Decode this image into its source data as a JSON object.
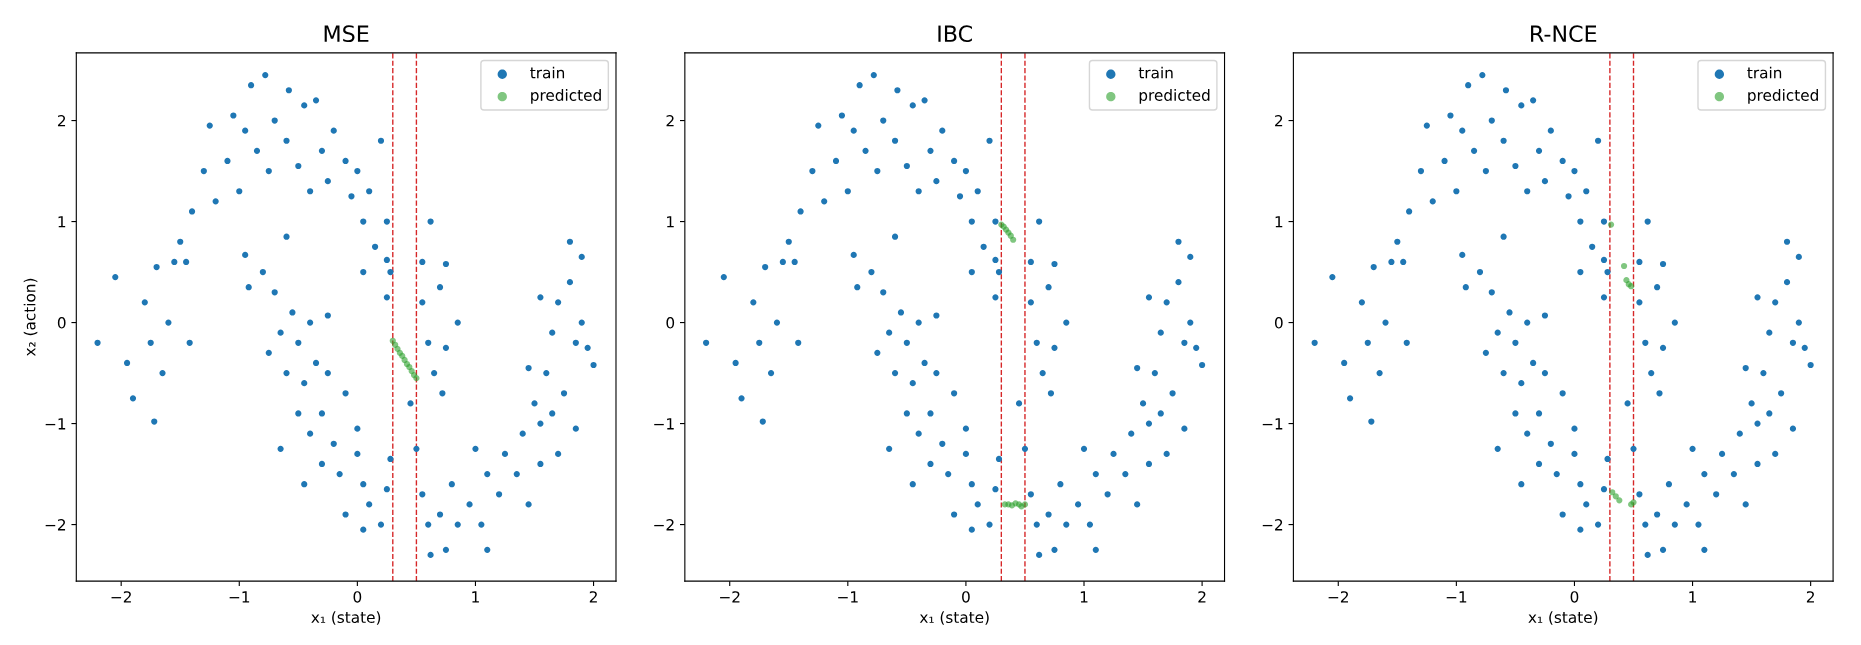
{
  "chart_data": [
    {
      "type": "scatter",
      "title": "MSE",
      "xlabel": "x₁ (state)",
      "ylabel": "x₂ (action)",
      "xlim": [
        -2.38,
        2.19
      ],
      "ylim": [
        -2.56,
        2.67
      ],
      "xticks": [
        -2,
        -1,
        0,
        1,
        2
      ],
      "yticks": [
        -2,
        -1,
        0,
        1,
        2
      ],
      "grid": false,
      "legend": "top right",
      "marker": "circle",
      "ref_lines": [
        {
          "axis": "x",
          "value": 0.3,
          "color": "#d62728",
          "line_style": "dashed"
        },
        {
          "axis": "x",
          "value": 0.5,
          "color": "#d62728",
          "line_style": "dashed"
        }
      ],
      "series": [
        {
          "name": "train",
          "color": "#1f77b4",
          "x": [
            -2.2,
            -2.05,
            -1.95,
            -1.9,
            -1.8,
            -1.75,
            -1.72,
            -1.7,
            -1.65,
            -1.6,
            -1.55,
            -1.5,
            -1.45,
            -1.42,
            -1.4,
            -1.3,
            -1.25,
            -1.2,
            -1.1,
            -1.05,
            -1.0,
            -0.95,
            -0.9,
            -0.85,
            -0.78,
            -0.75,
            -0.7,
            -0.6,
            -0.58,
            -0.5,
            -0.45,
            -0.4,
            -0.35,
            -0.3,
            -0.25,
            -0.2,
            -0.1,
            -0.05,
            0.0,
            0.05,
            0.1,
            0.15,
            0.2,
            0.25,
            0.28,
            0.25,
            0.62,
            0.55,
            0.75,
            0.7,
            0.55,
            0.6,
            0.75,
            0.85,
            0.65,
            0.72,
            0.05,
            0.25,
            -0.95,
            -0.92,
            -0.8,
            -0.7,
            -0.6,
            -0.55,
            -0.65,
            -0.75,
            -0.5,
            -0.4,
            -0.6,
            -0.45,
            -0.25,
            -0.35,
            -0.25,
            -0.65,
            -0.5,
            -0.4,
            -0.3,
            -0.2,
            -0.1,
            -0.45,
            -0.3,
            -0.15,
            0.0,
            0.05,
            -0.1,
            0.1,
            0.2,
            0.05,
            0.28,
            0.25,
            0.5,
            0.55,
            0.6,
            0.62,
            0.7,
            0.75,
            0.8,
            0.85,
            0.95,
            1.0,
            1.05,
            1.1,
            1.1,
            1.2,
            1.25,
            1.35,
            1.4,
            1.45,
            1.5,
            1.55,
            1.55,
            1.6,
            1.65,
            1.7,
            1.7,
            1.75,
            1.8,
            1.8,
            1.85,
            1.85,
            1.9,
            1.9,
            1.95,
            2.0,
            1.55,
            1.65,
            1.45,
            0.0,
            0.45
          ],
          "values": [
            -0.2,
            0.45,
            -0.4,
            -0.75,
            0.2,
            -0.2,
            -0.98,
            0.55,
            -0.5,
            0.0,
            0.6,
            0.8,
            0.6,
            -0.2,
            1.1,
            1.5,
            1.95,
            1.2,
            1.6,
            2.05,
            1.3,
            1.9,
            2.35,
            1.7,
            2.45,
            1.5,
            2.0,
            1.8,
            2.3,
            1.55,
            2.15,
            1.3,
            2.2,
            1.7,
            1.4,
            1.9,
            1.6,
            1.25,
            1.5,
            1.0,
            1.3,
            0.75,
            1.8,
            1.0,
            0.5,
            0.25,
            1.0,
            0.6,
            0.58,
            0.35,
            0.2,
            -0.2,
            -0.25,
            0.0,
            -0.5,
            -0.7,
            0.5,
            0.62,
            0.67,
            0.35,
            0.5,
            0.3,
            0.85,
            0.1,
            -0.1,
            -0.3,
            -0.2,
            0.0,
            -0.5,
            -0.6,
            0.07,
            -0.4,
            -0.5,
            -1.25,
            -0.9,
            -1.1,
            -0.9,
            -1.2,
            -0.7,
            -1.6,
            -1.4,
            -1.5,
            -1.3,
            -1.6,
            -1.9,
            -1.8,
            -2.0,
            -2.05,
            -1.35,
            -1.65,
            -1.25,
            -1.7,
            -2.0,
            -2.3,
            -1.9,
            -2.25,
            -1.6,
            -2.0,
            -1.8,
            -1.25,
            -2.0,
            -2.25,
            -1.5,
            -1.7,
            -1.3,
            -1.5,
            -1.1,
            -1.8,
            -0.8,
            -1.4,
            -1.0,
            -0.5,
            -0.1,
            0.2,
            -1.3,
            -0.7,
            0.4,
            0.8,
            -0.2,
            -1.05,
            0.65,
            0.0,
            -0.25,
            -0.42,
            0.25,
            -0.9,
            -0.45,
            -1.05,
            -0.8
          ]
        },
        {
          "name": "predicted",
          "color": "#2ca02c",
          "x": [
            0.3,
            0.32,
            0.34,
            0.36,
            0.38,
            0.4,
            0.42,
            0.44,
            0.46,
            0.48,
            0.5
          ],
          "values": [
            -0.18,
            -0.22,
            -0.26,
            -0.3,
            -0.33,
            -0.37,
            -0.41,
            -0.44,
            -0.48,
            -0.52,
            -0.55
          ]
        }
      ]
    },
    {
      "type": "scatter",
      "title": "IBC",
      "xlabel": "x₁ (state)",
      "xlim": [
        -2.38,
        2.19
      ],
      "ylim": [
        -2.56,
        2.67
      ],
      "xticks": [
        -2,
        -1,
        0,
        1,
        2
      ],
      "yticks": [
        -2,
        -1,
        0,
        1,
        2
      ],
      "grid": false,
      "legend": "top right",
      "marker": "circle",
      "ref_lines": [
        {
          "axis": "x",
          "value": 0.3,
          "color": "#d62728",
          "line_style": "dashed"
        },
        {
          "axis": "x",
          "value": 0.5,
          "color": "#d62728",
          "line_style": "dashed"
        }
      ],
      "series": [
        {
          "name": "train",
          "color": "#1f77b4",
          "x": [
            -2.2,
            -2.05,
            -1.95,
            -1.9,
            -1.8,
            -1.75,
            -1.72,
            -1.7,
            -1.65,
            -1.6,
            -1.55,
            -1.5,
            -1.45,
            -1.42,
            -1.4,
            -1.3,
            -1.25,
            -1.2,
            -1.1,
            -1.05,
            -1.0,
            -0.95,
            -0.9,
            -0.85,
            -0.78,
            -0.75,
            -0.7,
            -0.6,
            -0.58,
            -0.5,
            -0.45,
            -0.4,
            -0.35,
            -0.3,
            -0.25,
            -0.2,
            -0.1,
            -0.05,
            0.0,
            0.05,
            0.1,
            0.15,
            0.2,
            0.25,
            0.28,
            0.25,
            0.62,
            0.55,
            0.75,
            0.7,
            0.55,
            0.6,
            0.75,
            0.85,
            0.65,
            0.72,
            0.05,
            0.25,
            -0.95,
            -0.92,
            -0.8,
            -0.7,
            -0.6,
            -0.55,
            -0.65,
            -0.75,
            -0.5,
            -0.4,
            -0.6,
            -0.45,
            -0.25,
            -0.35,
            -0.25,
            -0.65,
            -0.5,
            -0.4,
            -0.3,
            -0.2,
            -0.1,
            -0.45,
            -0.3,
            -0.15,
            0.0,
            0.05,
            -0.1,
            0.1,
            0.2,
            0.05,
            0.28,
            0.25,
            0.5,
            0.55,
            0.6,
            0.62,
            0.7,
            0.75,
            0.8,
            0.85,
            0.95,
            1.0,
            1.05,
            1.1,
            1.1,
            1.2,
            1.25,
            1.35,
            1.4,
            1.45,
            1.5,
            1.55,
            1.55,
            1.6,
            1.65,
            1.7,
            1.7,
            1.75,
            1.8,
            1.8,
            1.85,
            1.85,
            1.9,
            1.9,
            1.95,
            2.0,
            1.55,
            1.65,
            1.45,
            0.0,
            0.45
          ],
          "values": [
            -0.2,
            0.45,
            -0.4,
            -0.75,
            0.2,
            -0.2,
            -0.98,
            0.55,
            -0.5,
            0.0,
            0.6,
            0.8,
            0.6,
            -0.2,
            1.1,
            1.5,
            1.95,
            1.2,
            1.6,
            2.05,
            1.3,
            1.9,
            2.35,
            1.7,
            2.45,
            1.5,
            2.0,
            1.8,
            2.3,
            1.55,
            2.15,
            1.3,
            2.2,
            1.7,
            1.4,
            1.9,
            1.6,
            1.25,
            1.5,
            1.0,
            1.3,
            0.75,
            1.8,
            1.0,
            0.5,
            0.25,
            1.0,
            0.6,
            0.58,
            0.35,
            0.2,
            -0.2,
            -0.25,
            0.0,
            -0.5,
            -0.7,
            0.5,
            0.62,
            0.67,
            0.35,
            0.5,
            0.3,
            0.85,
            0.1,
            -0.1,
            -0.3,
            -0.2,
            0.0,
            -0.5,
            -0.6,
            0.07,
            -0.4,
            -0.5,
            -1.25,
            -0.9,
            -1.1,
            -0.9,
            -1.2,
            -0.7,
            -1.6,
            -1.4,
            -1.5,
            -1.3,
            -1.6,
            -1.9,
            -1.8,
            -2.0,
            -2.05,
            -1.35,
            -1.65,
            -1.25,
            -1.7,
            -2.0,
            -2.3,
            -1.9,
            -2.25,
            -1.6,
            -2.0,
            -1.8,
            -1.25,
            -2.0,
            -2.25,
            -1.5,
            -1.7,
            -1.3,
            -1.5,
            -1.1,
            -1.8,
            -0.8,
            -1.4,
            -1.0,
            -0.5,
            -0.1,
            0.2,
            -1.3,
            -0.7,
            0.4,
            0.8,
            -0.2,
            -1.05,
            0.65,
            0.0,
            -0.25,
            -0.42,
            0.25,
            -0.9,
            -0.45,
            -1.05,
            -0.8
          ]
        },
        {
          "name": "predicted",
          "color": "#2ca02c",
          "x": [
            0.3,
            0.32,
            0.34,
            0.36,
            0.38,
            0.4,
            0.33,
            0.36,
            0.39,
            0.42,
            0.45,
            0.47,
            0.5
          ],
          "values": [
            0.97,
            0.95,
            0.92,
            0.89,
            0.86,
            0.82,
            -1.8,
            -1.8,
            -1.81,
            -1.79,
            -1.8,
            -1.82,
            -1.8
          ]
        }
      ]
    },
    {
      "type": "scatter",
      "title": "R-NCE",
      "xlabel": "x₁ (state)",
      "xlim": [
        -2.38,
        2.19
      ],
      "ylim": [
        -2.56,
        2.67
      ],
      "xticks": [
        -2,
        -1,
        0,
        1,
        2
      ],
      "yticks": [
        -2,
        -1,
        0,
        1,
        2
      ],
      "grid": false,
      "legend": "top right",
      "marker": "circle",
      "ref_lines": [
        {
          "axis": "x",
          "value": 0.3,
          "color": "#d62728",
          "line_style": "dashed"
        },
        {
          "axis": "x",
          "value": 0.5,
          "color": "#d62728",
          "line_style": "dashed"
        }
      ],
      "series": [
        {
          "name": "train",
          "color": "#1f77b4",
          "x": [
            -2.2,
            -2.05,
            -1.95,
            -1.9,
            -1.8,
            -1.75,
            -1.72,
            -1.7,
            -1.65,
            -1.6,
            -1.55,
            -1.5,
            -1.45,
            -1.42,
            -1.4,
            -1.3,
            -1.25,
            -1.2,
            -1.1,
            -1.05,
            -1.0,
            -0.95,
            -0.9,
            -0.85,
            -0.78,
            -0.75,
            -0.7,
            -0.6,
            -0.58,
            -0.5,
            -0.45,
            -0.4,
            -0.35,
            -0.3,
            -0.25,
            -0.2,
            -0.1,
            -0.05,
            0.0,
            0.05,
            0.1,
            0.15,
            0.2,
            0.25,
            0.28,
            0.25,
            0.62,
            0.55,
            0.75,
            0.7,
            0.55,
            0.6,
            0.75,
            0.85,
            0.65,
            0.72,
            0.05,
            0.25,
            -0.95,
            -0.92,
            -0.8,
            -0.7,
            -0.6,
            -0.55,
            -0.65,
            -0.75,
            -0.5,
            -0.4,
            -0.6,
            -0.45,
            -0.25,
            -0.35,
            -0.25,
            -0.65,
            -0.5,
            -0.4,
            -0.3,
            -0.2,
            -0.1,
            -0.45,
            -0.3,
            -0.15,
            0.0,
            0.05,
            -0.1,
            0.1,
            0.2,
            0.05,
            0.28,
            0.25,
            0.5,
            0.55,
            0.6,
            0.62,
            0.7,
            0.75,
            0.8,
            0.85,
            0.95,
            1.0,
            1.05,
            1.1,
            1.1,
            1.2,
            1.25,
            1.35,
            1.4,
            1.45,
            1.5,
            1.55,
            1.55,
            1.6,
            1.65,
            1.7,
            1.7,
            1.75,
            1.8,
            1.8,
            1.85,
            1.85,
            1.9,
            1.9,
            1.95,
            2.0,
            1.55,
            1.65,
            1.45,
            0.0,
            0.45
          ],
          "values": [
            -0.2,
            0.45,
            -0.4,
            -0.75,
            0.2,
            -0.2,
            -0.98,
            0.55,
            -0.5,
            0.0,
            0.6,
            0.8,
            0.6,
            -0.2,
            1.1,
            1.5,
            1.95,
            1.2,
            1.6,
            2.05,
            1.3,
            1.9,
            2.35,
            1.7,
            2.45,
            1.5,
            2.0,
            1.8,
            2.3,
            1.55,
            2.15,
            1.3,
            2.2,
            1.7,
            1.4,
            1.9,
            1.6,
            1.25,
            1.5,
            1.0,
            1.3,
            0.75,
            1.8,
            1.0,
            0.5,
            0.25,
            1.0,
            0.6,
            0.58,
            0.35,
            0.2,
            -0.2,
            -0.25,
            0.0,
            -0.5,
            -0.7,
            0.5,
            0.62,
            0.67,
            0.35,
            0.5,
            0.3,
            0.85,
            0.1,
            -0.1,
            -0.3,
            -0.2,
            0.0,
            -0.5,
            -0.6,
            0.07,
            -0.4,
            -0.5,
            -1.25,
            -0.9,
            -1.1,
            -0.9,
            -1.2,
            -0.7,
            -1.6,
            -1.4,
            -1.5,
            -1.3,
            -1.6,
            -1.9,
            -1.8,
            -2.0,
            -2.05,
            -1.35,
            -1.65,
            -1.25,
            -1.7,
            -2.0,
            -2.3,
            -1.9,
            -2.25,
            -1.6,
            -2.0,
            -1.8,
            -1.25,
            -2.0,
            -2.25,
            -1.5,
            -1.7,
            -1.3,
            -1.5,
            -1.1,
            -1.8,
            -0.8,
            -1.4,
            -1.0,
            -0.5,
            -0.1,
            0.2,
            -1.3,
            -0.7,
            0.4,
            0.8,
            -0.2,
            -1.05,
            0.65,
            0.0,
            -0.25,
            -0.42,
            0.25,
            -0.9,
            -0.45,
            -1.05,
            -0.8
          ]
        },
        {
          "name": "predicted",
          "color": "#2ca02c",
          "x": [
            0.31,
            0.42,
            0.44,
            0.46,
            0.48,
            0.32,
            0.35,
            0.38,
            0.48,
            0.5
          ],
          "values": [
            0.97,
            0.56,
            0.42,
            0.38,
            0.36,
            -1.68,
            -1.72,
            -1.76,
            -1.8,
            -1.78
          ]
        }
      ]
    }
  ]
}
